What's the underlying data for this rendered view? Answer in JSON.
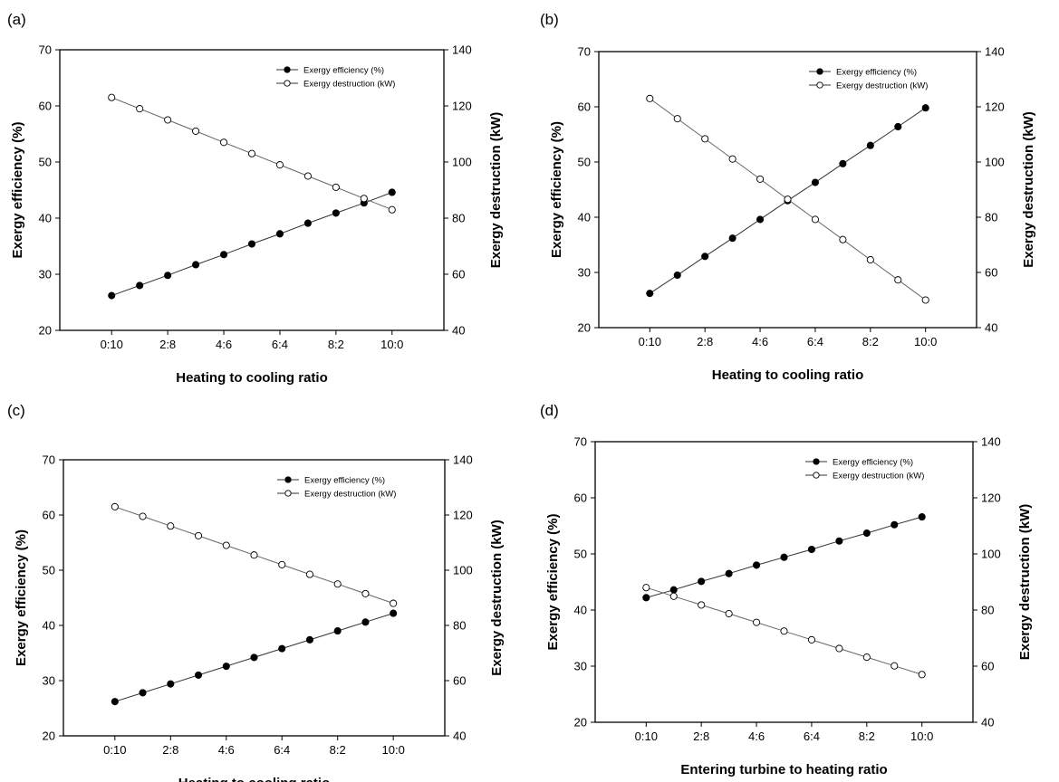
{
  "chart_data": [
    {
      "panel_label": "(a)",
      "type": "line",
      "categories": [
        "0:10",
        "1:9",
        "2:8",
        "3:7",
        "4:6",
        "5:5",
        "6:4",
        "7:3",
        "8:2",
        "9:1",
        "10:0"
      ],
      "x_tick_labels": [
        "0:10",
        "2:8",
        "4:6",
        "6:4",
        "8:2",
        "10:0"
      ],
      "xlabel": "Heating to cooling ratio",
      "ylabel": "Exergy efficiency (%)",
      "y2label": "Exergy destruction (kW)",
      "ylim": [
        20,
        70
      ],
      "yticks": [
        20,
        30,
        40,
        50,
        60,
        70
      ],
      "y2lim": [
        40,
        140
      ],
      "y2ticks": [
        40,
        60,
        80,
        100,
        120,
        140
      ],
      "legend": "top-right",
      "series": [
        {
          "name": "Exergy efficiency (%)",
          "axis": "left",
          "marker": "filled",
          "values": [
            26.2,
            28.0,
            29.8,
            31.7,
            33.5,
            35.4,
            37.2,
            39.1,
            40.9,
            42.7,
            44.6
          ]
        },
        {
          "name": "Exergy destruction (kW)",
          "axis": "right",
          "marker": "open",
          "values": [
            123,
            119,
            115,
            111,
            107,
            103,
            99,
            95,
            91,
            87,
            83
          ]
        }
      ]
    },
    {
      "panel_label": "(b)",
      "type": "line",
      "categories": [
        "0:10",
        "1:9",
        "2:8",
        "3:7",
        "4:6",
        "5:5",
        "6:4",
        "7:3",
        "8:2",
        "9:1",
        "10:0"
      ],
      "x_tick_labels": [
        "0:10",
        "2:8",
        "4:6",
        "6:4",
        "8:2",
        "10:0"
      ],
      "xlabel": "Heating to cooling ratio",
      "ylabel": "Exergy efficiency (%)",
      "y2label": "Exergy destruction (kW)",
      "ylim": [
        20,
        70
      ],
      "yticks": [
        20,
        30,
        40,
        50,
        60,
        70
      ],
      "y2lim": [
        40,
        140
      ],
      "y2ticks": [
        40,
        60,
        80,
        100,
        120,
        140
      ],
      "legend": "top-right",
      "series": [
        {
          "name": "Exergy efficiency (%)",
          "axis": "left",
          "marker": "filled",
          "values": [
            26.2,
            29.5,
            32.9,
            36.2,
            39.6,
            43.0,
            46.3,
            49.7,
            53.0,
            56.4,
            59.8
          ]
        },
        {
          "name": "Exergy destruction (kW)",
          "axis": "right",
          "marker": "open",
          "values": [
            123,
            115.7,
            108.4,
            101.1,
            93.8,
            86.5,
            79.2,
            71.9,
            64.6,
            57.3,
            50
          ]
        }
      ]
    },
    {
      "panel_label": "(c)",
      "type": "line",
      "categories": [
        "0:10",
        "1:9",
        "2:8",
        "3:7",
        "4:6",
        "5:5",
        "6:4",
        "7:3",
        "8:2",
        "9:1",
        "10:0"
      ],
      "x_tick_labels": [
        "0:10",
        "2:8",
        "4:6",
        "6:4",
        "8:2",
        "10:0"
      ],
      "xlabel": "Heating to cooling ratio",
      "ylabel": "Exergy efficiency (%)",
      "y2label": "Exergy destruction (kW)",
      "ylim": [
        20,
        70
      ],
      "yticks": [
        20,
        30,
        40,
        50,
        60,
        70
      ],
      "y2lim": [
        40,
        140
      ],
      "y2ticks": [
        40,
        60,
        80,
        100,
        120,
        140
      ],
      "legend": "top-right",
      "series": [
        {
          "name": "Exergy efficiency (%)",
          "axis": "left",
          "marker": "filled",
          "values": [
            26.2,
            27.8,
            29.4,
            31.0,
            32.6,
            34.2,
            35.8,
            37.4,
            39.0,
            40.6,
            42.2
          ]
        },
        {
          "name": "Exergy destruction (kW)",
          "axis": "right",
          "marker": "open",
          "values": [
            123,
            119.5,
            116,
            112.5,
            109,
            105.5,
            102,
            98.5,
            95,
            91.5,
            88
          ]
        }
      ]
    },
    {
      "panel_label": "(d)",
      "type": "line",
      "categories": [
        "0:10",
        "1:9",
        "2:8",
        "3:7",
        "4:6",
        "5:5",
        "6:4",
        "7:3",
        "8:2",
        "9:1",
        "10:0"
      ],
      "x_tick_labels": [
        "0:10",
        "2:8",
        "4:6",
        "6:4",
        "8:2",
        "10:0"
      ],
      "xlabel": "Entering turbine to heating ratio",
      "ylabel": "Exergy efficiency (%)",
      "y2label": "Exergy destruction (kW)",
      "ylim": [
        20,
        70
      ],
      "yticks": [
        20,
        30,
        40,
        50,
        60,
        70
      ],
      "y2lim": [
        40,
        140
      ],
      "y2ticks": [
        40,
        60,
        80,
        100,
        120,
        140
      ],
      "legend": "top-right",
      "series": [
        {
          "name": "Exergy efficiency (%)",
          "axis": "left",
          "marker": "filled",
          "values": [
            42.2,
            43.6,
            45.1,
            46.5,
            48.0,
            49.4,
            50.8,
            52.3,
            53.7,
            55.2,
            56.6
          ]
        },
        {
          "name": "Exergy destruction (kW)",
          "axis": "right",
          "marker": "open",
          "values": [
            88,
            84.9,
            81.8,
            78.7,
            75.6,
            72.5,
            69.4,
            66.3,
            63.2,
            60.1,
            57
          ]
        }
      ]
    }
  ]
}
